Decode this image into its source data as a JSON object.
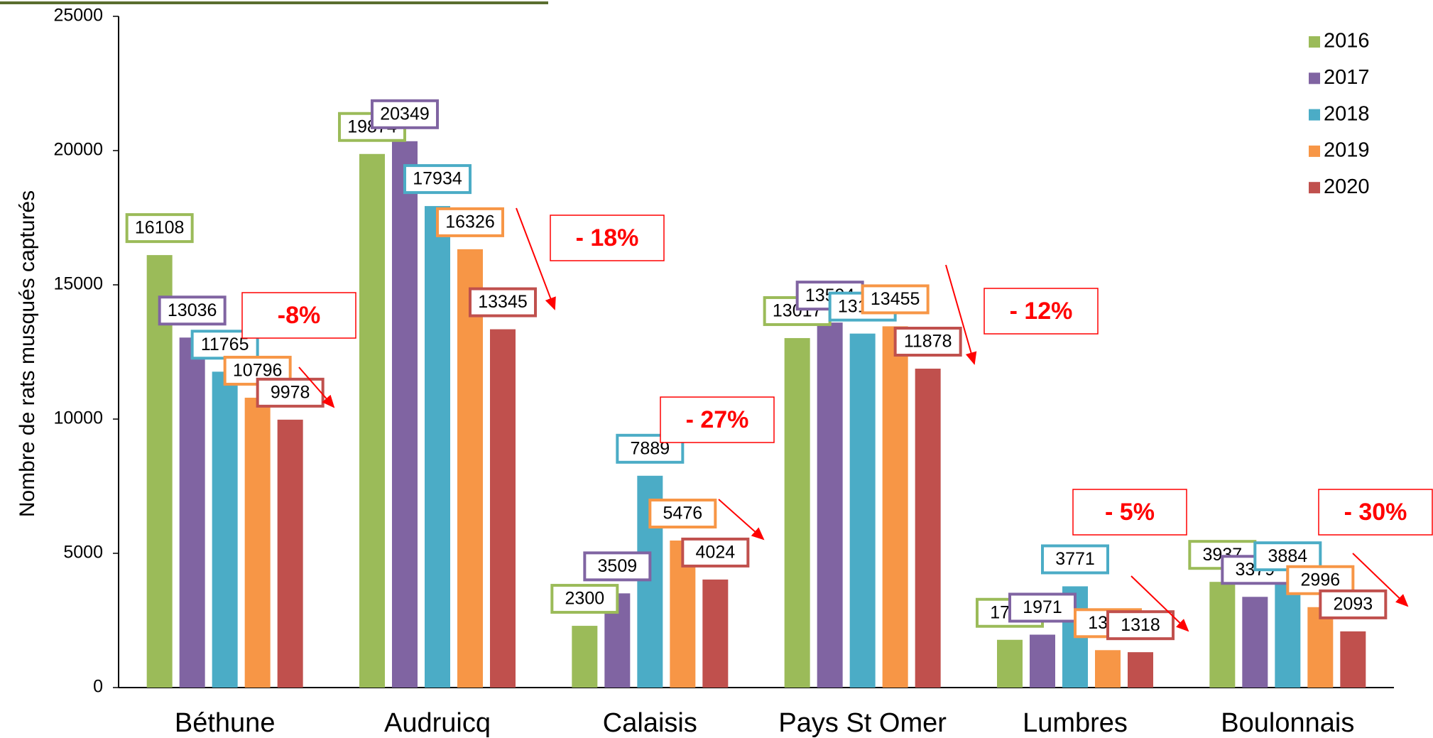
{
  "chart_data": {
    "type": "bar",
    "y_label": "Nombre de rats musqués capturés",
    "categories": [
      "Béthune",
      "Audruicq",
      "Calaisis",
      "Pays St Omer",
      "Lumbres",
      "Boulonnais"
    ],
    "series": [
      {
        "name": "2016",
        "color": "#9bbb59",
        "values": [
          16108,
          19874,
          2300,
          13017,
          1779,
          3937
        ]
      },
      {
        "name": "2017",
        "color": "#8064a2",
        "values": [
          13036,
          20349,
          3509,
          13594,
          1971,
          3379
        ]
      },
      {
        "name": "2018",
        "color": "#4bacc6",
        "values": [
          11765,
          17934,
          7889,
          13184,
          3771,
          3884
        ]
      },
      {
        "name": "2019",
        "color": "#f79646",
        "values": [
          10796,
          16326,
          5476,
          13455,
          1394,
          2996
        ]
      },
      {
        "name": "2020",
        "color": "#c0504d",
        "values": [
          9978,
          13345,
          4024,
          11878,
          1318,
          2093
        ]
      }
    ],
    "ylim": [
      0,
      25000
    ],
    "yticks": [
      0,
      5000,
      10000,
      15000,
      20000,
      25000
    ],
    "legend": "top-right",
    "annotations": [
      "-8%",
      "- 18%",
      "- 27%",
      "- 12%",
      "- 5%",
      "- 30%"
    ],
    "annotation_color": "#ff0000"
  }
}
